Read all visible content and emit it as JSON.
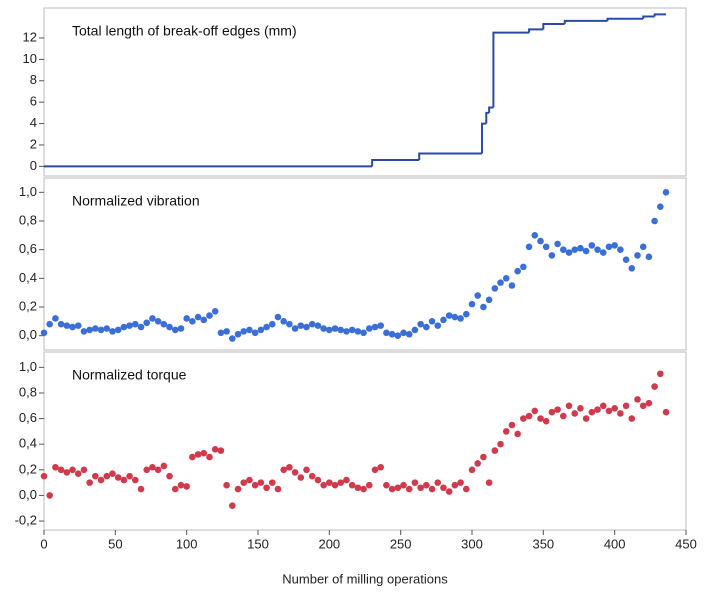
{
  "chart_data": [
    {
      "type": "line",
      "drawstyle": "steps-post",
      "title": "Total length of break-off edges (mm)",
      "x": [
        0,
        230,
        263,
        307,
        310,
        312,
        315,
        340,
        350,
        365,
        395,
        420,
        428,
        436
      ],
      "values": [
        0,
        0.6,
        1.2,
        4,
        5,
        5.5,
        12.5,
        12.8,
        13.3,
        13.6,
        13.8,
        14,
        14.2,
        14.2
      ],
      "color": "#2b4aa6",
      "xlim": [
        0,
        450
      ],
      "ylim": [
        -0.9,
        14.8
      ],
      "yticks": [
        0,
        2,
        4,
        6,
        8,
        10,
        12
      ]
    },
    {
      "type": "scatter",
      "title": "Normalized vibration",
      "x": [
        0,
        4,
        8,
        12,
        16,
        20,
        24,
        28,
        32,
        36,
        40,
        44,
        48,
        52,
        56,
        60,
        64,
        68,
        72,
        76,
        80,
        84,
        88,
        92,
        96,
        100,
        104,
        108,
        112,
        116,
        120,
        124,
        128,
        132,
        136,
        140,
        144,
        148,
        152,
        156,
        160,
        164,
        168,
        172,
        176,
        180,
        184,
        188,
        192,
        196,
        200,
        204,
        208,
        212,
        216,
        220,
        224,
        228,
        232,
        236,
        240,
        244,
        248,
        252,
        256,
        260,
        264,
        268,
        272,
        276,
        280,
        284,
        288,
        292,
        296,
        300,
        304,
        308,
        312,
        316,
        320,
        324,
        328,
        332,
        336,
        340,
        344,
        348,
        352,
        356,
        360,
        364,
        368,
        372,
        376,
        380,
        384,
        388,
        392,
        396,
        400,
        404,
        408,
        412,
        416,
        420,
        424,
        428,
        432,
        436
      ],
      "values": [
        0.02,
        0.08,
        0.12,
        0.08,
        0.07,
        0.06,
        0.07,
        0.03,
        0.04,
        0.05,
        0.04,
        0.05,
        0.03,
        0.04,
        0.06,
        0.07,
        0.08,
        0.06,
        0.09,
        0.12,
        0.1,
        0.08,
        0.06,
        0.04,
        0.05,
        0.12,
        0.1,
        0.13,
        0.11,
        0.14,
        0.17,
        0.02,
        0.03,
        -0.02,
        0.01,
        0.03,
        0.04,
        0.02,
        0.04,
        0.06,
        0.08,
        0.13,
        0.1,
        0.08,
        0.05,
        0.07,
        0.06,
        0.08,
        0.07,
        0.05,
        0.04,
        0.05,
        0.04,
        0.03,
        0.04,
        0.03,
        0.02,
        0.05,
        0.06,
        0.07,
        0.02,
        0.01,
        0.0,
        0.02,
        0.01,
        0.04,
        0.08,
        0.06,
        0.1,
        0.07,
        0.11,
        0.14,
        0.13,
        0.12,
        0.15,
        0.22,
        0.28,
        0.2,
        0.25,
        0.33,
        0.37,
        0.4,
        0.35,
        0.45,
        0.48,
        0.62,
        0.7,
        0.66,
        0.62,
        0.56,
        0.64,
        0.6,
        0.58,
        0.6,
        0.61,
        0.59,
        0.63,
        0.6,
        0.58,
        0.62,
        0.63,
        0.6,
        0.53,
        0.47,
        0.56,
        0.62,
        0.55,
        0.8,
        0.9,
        1.0
      ],
      "color": "#3a6fd8",
      "xlim": [
        0,
        450
      ],
      "ylim": [
        -0.1,
        1.1
      ],
      "yticks": [
        {
          "value": 0,
          "label": "0,0"
        },
        {
          "value": 0.2,
          "label": "0,2"
        },
        {
          "value": 0.4,
          "label": "0,4"
        },
        {
          "value": 0.6,
          "label": "0,6"
        },
        {
          "value": 0.8,
          "label": "0,8"
        },
        {
          "value": 1,
          "label": "1,0"
        }
      ]
    },
    {
      "type": "scatter",
      "title": "Normalized torque",
      "xlabel": "Number of milling operations",
      "x": [
        0,
        4,
        8,
        12,
        16,
        20,
        24,
        28,
        32,
        36,
        40,
        44,
        48,
        52,
        56,
        60,
        64,
        68,
        72,
        76,
        80,
        84,
        88,
        92,
        96,
        100,
        104,
        108,
        112,
        116,
        120,
        124,
        128,
        132,
        136,
        140,
        144,
        148,
        152,
        156,
        160,
        164,
        168,
        172,
        176,
        180,
        184,
        188,
        192,
        196,
        200,
        204,
        208,
        212,
        216,
        220,
        224,
        228,
        232,
        236,
        240,
        244,
        248,
        252,
        256,
        260,
        264,
        268,
        272,
        276,
        280,
        284,
        288,
        292,
        296,
        300,
        304,
        308,
        312,
        316,
        320,
        324,
        328,
        332,
        336,
        340,
        344,
        348,
        352,
        356,
        360,
        364,
        368,
        372,
        376,
        380,
        384,
        388,
        392,
        396,
        400,
        404,
        408,
        412,
        416,
        420,
        424,
        428,
        432,
        436
      ],
      "values": [
        0.15,
        0.0,
        0.22,
        0.2,
        0.18,
        0.2,
        0.17,
        0.2,
        0.1,
        0.15,
        0.12,
        0.15,
        0.17,
        0.14,
        0.12,
        0.15,
        0.12,
        0.05,
        0.2,
        0.22,
        0.2,
        0.23,
        0.15,
        0.05,
        0.08,
        0.07,
        0.3,
        0.32,
        0.33,
        0.3,
        0.36,
        0.35,
        0.08,
        -0.08,
        0.05,
        0.1,
        0.12,
        0.08,
        0.1,
        0.06,
        0.1,
        0.05,
        0.2,
        0.22,
        0.18,
        0.14,
        0.2,
        0.15,
        0.12,
        0.08,
        0.1,
        0.08,
        0.1,
        0.12,
        0.08,
        0.06,
        0.05,
        0.08,
        0.2,
        0.22,
        0.08,
        0.05,
        0.06,
        0.08,
        0.05,
        0.1,
        0.06,
        0.08,
        0.05,
        0.1,
        0.06,
        0.03,
        0.08,
        0.1,
        0.05,
        0.2,
        0.25,
        0.3,
        0.1,
        0.35,
        0.4,
        0.5,
        0.55,
        0.48,
        0.6,
        0.62,
        0.66,
        0.6,
        0.58,
        0.65,
        0.67,
        0.62,
        0.7,
        0.64,
        0.68,
        0.6,
        0.65,
        0.67,
        0.7,
        0.66,
        0.68,
        0.64,
        0.7,
        0.6,
        0.75,
        0.7,
        0.72,
        0.85,
        0.95,
        0.65
      ],
      "color": "#d03a4c",
      "xlim": [
        0,
        450
      ],
      "ylim": [
        -0.27,
        1.12
      ],
      "yticks": [
        {
          "value": -0.2,
          "label": "-0,2"
        },
        {
          "value": 0,
          "label": "0,0"
        },
        {
          "value": 0.2,
          "label": "0,2"
        },
        {
          "value": 0.4,
          "label": "0,4"
        },
        {
          "value": 0.6,
          "label": "0,6"
        },
        {
          "value": 0.8,
          "label": "0,8"
        },
        {
          "value": 1,
          "label": "1,0"
        }
      ],
      "xticks": [
        0,
        50,
        100,
        150,
        200,
        250,
        300,
        350,
        400,
        450
      ]
    }
  ]
}
